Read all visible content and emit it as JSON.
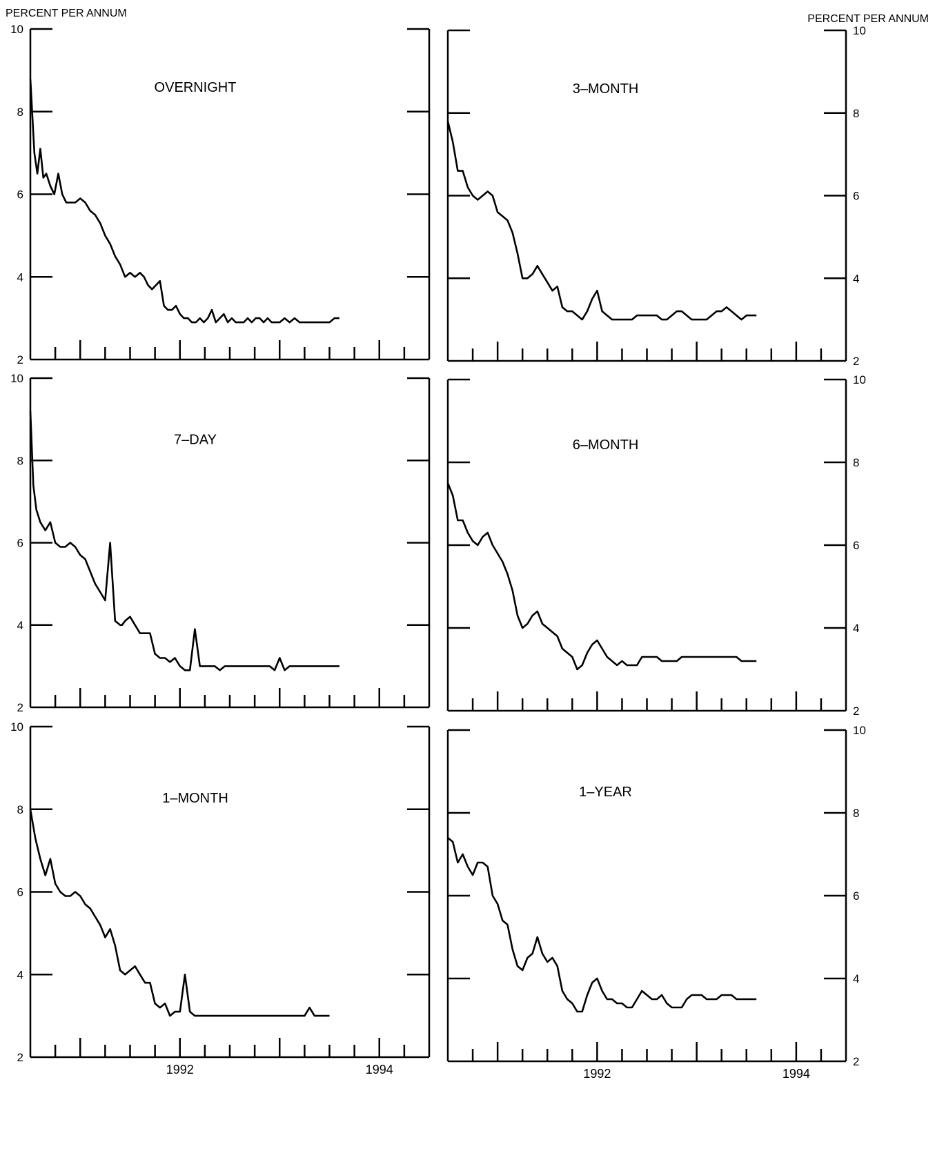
{
  "unit_label": "PERCENT PER ANNUM",
  "colors": {
    "line": "#000000",
    "background": "#ffffff"
  },
  "chart_data": [
    {
      "type": "line",
      "title": "OVERNIGHT",
      "ylabel": "PERCENT PER ANNUM",
      "ylim": [
        2,
        10
      ],
      "yticks": [
        2,
        4,
        6,
        8,
        10
      ],
      "xlim": [
        1990.5,
        1994.5
      ],
      "xtick_labels": [],
      "y_axis_side": "left",
      "grid": false,
      "series": [
        {
          "x": [
            1990.5,
            1990.54,
            1990.57,
            1990.6,
            1990.63,
            1990.66,
            1990.7,
            1990.74,
            1990.78,
            1990.82,
            1990.86,
            1990.9,
            1990.95,
            1991.0,
            1991.05,
            1991.1,
            1991.15,
            1991.2,
            1991.25,
            1991.3,
            1991.35,
            1991.4,
            1991.45,
            1991.5,
            1991.55,
            1991.6,
            1991.64,
            1991.68,
            1991.72,
            1991.76,
            1991.8,
            1991.84,
            1991.88,
            1991.92,
            1991.96,
            1992.0,
            1992.04,
            1992.08,
            1992.12,
            1992.16,
            1992.2,
            1992.24,
            1992.28,
            1992.32,
            1992.36,
            1992.4,
            1992.44,
            1992.48,
            1992.52,
            1992.56,
            1992.6,
            1992.64,
            1992.68,
            1992.72,
            1992.76,
            1992.8,
            1992.84,
            1992.88,
            1992.92,
            1992.96,
            1993.0,
            1993.05,
            1993.1,
            1993.15,
            1993.2,
            1993.25,
            1993.3,
            1993.35,
            1993.4,
            1993.45,
            1993.5,
            1993.55,
            1993.6
          ],
          "y": [
            8.8,
            7.0,
            6.5,
            7.1,
            6.4,
            6.5,
            6.2,
            6.0,
            6.5,
            6.0,
            5.8,
            5.8,
            5.8,
            5.9,
            5.8,
            5.6,
            5.5,
            5.3,
            5.0,
            4.8,
            4.5,
            4.3,
            4.0,
            4.1,
            4.0,
            4.1,
            4.0,
            3.8,
            3.7,
            3.8,
            3.9,
            3.3,
            3.2,
            3.2,
            3.3,
            3.1,
            3.0,
            3.0,
            2.9,
            2.9,
            3.0,
            2.9,
            3.0,
            3.2,
            2.9,
            3.0,
            3.1,
            2.9,
            3.0,
            2.9,
            2.9,
            2.9,
            3.0,
            2.9,
            3.0,
            3.0,
            2.9,
            3.0,
            2.9,
            2.9,
            2.9,
            3.0,
            2.9,
            3.0,
            2.9,
            2.9,
            2.9,
            2.9,
            2.9,
            2.9,
            2.9,
            3.0,
            3.0
          ]
        }
      ]
    },
    {
      "type": "line",
      "title": "7–DAY",
      "ylabel": "",
      "ylim": [
        2,
        10
      ],
      "yticks": [
        2,
        4,
        6,
        8,
        10
      ],
      "xlim": [
        1990.5,
        1994.5
      ],
      "xtick_labels": [],
      "y_axis_side": "left",
      "grid": false,
      "series": [
        {
          "x": [
            1990.5,
            1990.53,
            1990.56,
            1990.6,
            1990.65,
            1990.7,
            1990.75,
            1990.8,
            1990.85,
            1990.9,
            1990.95,
            1991.0,
            1991.05,
            1991.1,
            1991.15,
            1991.2,
            1991.25,
            1991.3,
            1991.35,
            1991.4,
            1991.42,
            1991.45,
            1991.5,
            1991.55,
            1991.6,
            1991.65,
            1991.7,
            1991.75,
            1991.8,
            1991.85,
            1991.9,
            1991.95,
            1992.0,
            1992.05,
            1992.1,
            1992.15,
            1992.2,
            1992.25,
            1992.3,
            1992.35,
            1992.4,
            1992.45,
            1992.5,
            1992.52,
            1992.55,
            1992.6,
            1992.65,
            1992.7,
            1992.75,
            1992.8,
            1992.85,
            1992.9,
            1992.95,
            1993.0,
            1993.05,
            1993.1,
            1993.15,
            1993.2,
            1993.25,
            1993.3,
            1993.35,
            1993.4,
            1993.45,
            1993.5,
            1993.55,
            1993.6
          ],
          "y": [
            9.2,
            7.4,
            6.8,
            6.5,
            6.3,
            6.5,
            6.0,
            5.9,
            5.9,
            6.0,
            5.9,
            5.7,
            5.6,
            5.3,
            5.0,
            4.8,
            4.6,
            6.0,
            4.1,
            4.0,
            4.0,
            4.1,
            4.2,
            4.0,
            3.8,
            3.8,
            3.8,
            3.3,
            3.2,
            3.2,
            3.1,
            3.2,
            3.0,
            2.9,
            2.9,
            3.9,
            3.0,
            3.0,
            3.0,
            3.0,
            2.9,
            3.0,
            3.0,
            3.0,
            3.0,
            3.0,
            3.0,
            3.0,
            3.0,
            3.0,
            3.0,
            3.0,
            2.9,
            3.2,
            2.9,
            3.0,
            3.0,
            3.0,
            3.0,
            3.0,
            3.0,
            3.0,
            3.0,
            3.0,
            3.0,
            3.0
          ]
        }
      ]
    },
    {
      "type": "line",
      "title": "1–MONTH",
      "ylabel": "",
      "ylim": [
        2,
        10
      ],
      "yticks": [
        2,
        4,
        6,
        8,
        10
      ],
      "xlim": [
        1990.5,
        1994.5
      ],
      "xtick_labels": [
        "1992",
        "1994"
      ],
      "y_axis_side": "left",
      "grid": false,
      "series": [
        {
          "x": [
            1990.5,
            1990.55,
            1990.6,
            1990.65,
            1990.7,
            1990.75,
            1990.8,
            1990.85,
            1990.9,
            1990.95,
            1991.0,
            1991.05,
            1991.1,
            1991.15,
            1991.2,
            1991.25,
            1991.3,
            1991.35,
            1991.4,
            1991.45,
            1991.5,
            1991.55,
            1991.6,
            1991.65,
            1991.7,
            1991.75,
            1991.8,
            1991.85,
            1991.9,
            1991.95,
            1992.0,
            1992.05,
            1992.1,
            1992.15,
            1992.2,
            1992.25,
            1992.3,
            1992.35,
            1992.4,
            1992.45,
            1992.5,
            1992.55,
            1992.6,
            1992.65,
            1992.7,
            1992.75,
            1992.8,
            1992.85,
            1992.9,
            1992.95,
            1993.0,
            1993.05,
            1993.1,
            1993.15,
            1993.2,
            1993.25,
            1993.3,
            1993.35,
            1993.4,
            1993.45,
            1993.5
          ],
          "y": [
            8.0,
            7.3,
            6.8,
            6.4,
            6.8,
            6.2,
            6.0,
            5.9,
            5.9,
            6.0,
            5.9,
            5.7,
            5.6,
            5.4,
            5.2,
            4.9,
            5.1,
            4.7,
            4.1,
            4.0,
            4.1,
            4.2,
            4.0,
            3.8,
            3.8,
            3.3,
            3.2,
            3.3,
            3.0,
            3.1,
            3.1,
            4.0,
            3.1,
            3.0,
            3.0,
            3.0,
            3.0,
            3.0,
            3.0,
            3.0,
            3.0,
            3.0,
            3.0,
            3.0,
            3.0,
            3.0,
            3.0,
            3.0,
            3.0,
            3.0,
            3.0,
            3.0,
            3.0,
            3.0,
            3.0,
            3.0,
            3.2,
            3.0,
            3.0,
            3.0,
            3.0
          ]
        }
      ]
    },
    {
      "type": "line",
      "title": "3–MONTH",
      "ylabel": "PERCENT PER ANNUM",
      "ylim": [
        2,
        10
      ],
      "yticks": [
        2,
        4,
        6,
        8,
        10
      ],
      "xlim": [
        1990.5,
        1994.5
      ],
      "xtick_labels": [],
      "y_axis_side": "right",
      "grid": false,
      "series": [
        {
          "x": [
            1990.5,
            1990.55,
            1990.6,
            1990.65,
            1990.7,
            1990.75,
            1990.8,
            1990.85,
            1990.9,
            1990.95,
            1991.0,
            1991.05,
            1991.1,
            1991.15,
            1991.2,
            1991.25,
            1991.3,
            1991.35,
            1991.4,
            1991.45,
            1991.5,
            1991.55,
            1991.6,
            1991.65,
            1991.7,
            1991.75,
            1991.8,
            1991.85,
            1991.9,
            1991.95,
            1992.0,
            1992.05,
            1992.1,
            1992.15,
            1992.2,
            1992.25,
            1992.3,
            1992.35,
            1992.4,
            1992.45,
            1992.5,
            1992.55,
            1992.6,
            1992.65,
            1992.7,
            1992.75,
            1992.8,
            1992.85,
            1992.9,
            1992.95,
            1993.0,
            1993.05,
            1993.1,
            1993.15,
            1993.2,
            1993.25,
            1993.3,
            1993.35,
            1993.4,
            1993.45,
            1993.5,
            1993.55,
            1993.6
          ],
          "y": [
            7.8,
            7.3,
            6.6,
            6.6,
            6.2,
            6.0,
            5.9,
            6.0,
            6.1,
            6.0,
            5.6,
            5.5,
            5.4,
            5.1,
            4.6,
            4.0,
            4.0,
            4.1,
            4.3,
            4.1,
            3.9,
            3.7,
            3.8,
            3.3,
            3.2,
            3.2,
            3.1,
            3.0,
            3.2,
            3.5,
            3.7,
            3.2,
            3.1,
            3.0,
            3.0,
            3.0,
            3.0,
            3.0,
            3.1,
            3.1,
            3.1,
            3.1,
            3.1,
            3.0,
            3.0,
            3.1,
            3.2,
            3.2,
            3.1,
            3.0,
            3.0,
            3.0,
            3.0,
            3.1,
            3.2,
            3.2,
            3.3,
            3.2,
            3.1,
            3.0,
            3.1,
            3.1,
            3.1
          ]
        }
      ]
    },
    {
      "type": "line",
      "title": "6–MONTH",
      "ylabel": "",
      "ylim": [
        2,
        10
      ],
      "yticks": [
        2,
        4,
        6,
        8,
        10
      ],
      "xlim": [
        1990.5,
        1994.5
      ],
      "xtick_labels": [],
      "y_axis_side": "right",
      "grid": false,
      "series": [
        {
          "x": [
            1990.5,
            1990.55,
            1990.6,
            1990.65,
            1990.7,
            1990.75,
            1990.8,
            1990.85,
            1990.9,
            1990.95,
            1991.0,
            1991.05,
            1991.1,
            1991.15,
            1991.2,
            1991.25,
            1991.3,
            1991.35,
            1991.4,
            1991.45,
            1991.5,
            1991.55,
            1991.6,
            1991.65,
            1991.7,
            1991.75,
            1991.8,
            1991.85,
            1991.9,
            1991.95,
            1992.0,
            1992.05,
            1992.1,
            1992.15,
            1992.2,
            1992.25,
            1992.3,
            1992.35,
            1992.4,
            1992.45,
            1992.5,
            1992.55,
            1992.6,
            1992.65,
            1992.7,
            1992.75,
            1992.8,
            1992.85,
            1992.9,
            1992.95,
            1993.0,
            1993.05,
            1993.1,
            1993.15,
            1993.2,
            1993.25,
            1993.3,
            1993.35,
            1993.4,
            1993.45,
            1993.5,
            1993.55,
            1993.6
          ],
          "y": [
            7.5,
            7.2,
            6.6,
            6.6,
            6.3,
            6.1,
            6.0,
            6.2,
            6.3,
            6.0,
            5.8,
            5.6,
            5.3,
            4.9,
            4.3,
            4.0,
            4.1,
            4.3,
            4.4,
            4.1,
            4.0,
            3.9,
            3.8,
            3.5,
            3.4,
            3.3,
            3.0,
            3.1,
            3.4,
            3.6,
            3.7,
            3.5,
            3.3,
            3.2,
            3.1,
            3.2,
            3.1,
            3.1,
            3.1,
            3.3,
            3.3,
            3.3,
            3.3,
            3.2,
            3.2,
            3.2,
            3.2,
            3.3,
            3.3,
            3.3,
            3.3,
            3.3,
            3.3,
            3.3,
            3.3,
            3.3,
            3.3,
            3.3,
            3.3,
            3.2,
            3.2,
            3.2,
            3.2
          ]
        }
      ]
    },
    {
      "type": "line",
      "title": "1–YEAR",
      "ylabel": "",
      "ylim": [
        2,
        10
      ],
      "yticks": [
        2,
        4,
        6,
        8,
        10
      ],
      "xlim": [
        1990.5,
        1994.5
      ],
      "xtick_labels": [
        "1992",
        "1994"
      ],
      "y_axis_side": "right",
      "grid": false,
      "series": [
        {
          "x": [
            1990.5,
            1990.55,
            1990.6,
            1990.65,
            1990.7,
            1990.75,
            1990.8,
            1990.85,
            1990.9,
            1990.95,
            1991.0,
            1991.05,
            1991.1,
            1991.15,
            1991.2,
            1991.25,
            1991.3,
            1991.35,
            1991.4,
            1991.45,
            1991.5,
            1991.55,
            1991.6,
            1991.65,
            1991.7,
            1991.75,
            1991.8,
            1991.85,
            1991.9,
            1991.95,
            1992.0,
            1992.05,
            1992.1,
            1992.15,
            1992.2,
            1992.25,
            1992.3,
            1992.35,
            1992.4,
            1992.45,
            1992.5,
            1992.55,
            1992.6,
            1992.65,
            1992.7,
            1992.75,
            1992.8,
            1992.85,
            1992.9,
            1992.95,
            1993.0,
            1993.05,
            1993.1,
            1993.15,
            1993.2,
            1993.25,
            1993.3,
            1993.35,
            1993.4,
            1993.45,
            1993.5,
            1993.55,
            1993.6
          ],
          "y": [
            7.4,
            7.3,
            6.8,
            7.0,
            6.7,
            6.5,
            6.8,
            6.8,
            6.7,
            6.0,
            5.8,
            5.4,
            5.3,
            4.7,
            4.3,
            4.2,
            4.5,
            4.6,
            5.0,
            4.6,
            4.4,
            4.5,
            4.3,
            3.7,
            3.5,
            3.4,
            3.2,
            3.2,
            3.6,
            3.9,
            4.0,
            3.7,
            3.5,
            3.5,
            3.4,
            3.4,
            3.3,
            3.3,
            3.5,
            3.7,
            3.6,
            3.5,
            3.5,
            3.6,
            3.4,
            3.3,
            3.3,
            3.3,
            3.5,
            3.6,
            3.6,
            3.6,
            3.5,
            3.5,
            3.5,
            3.6,
            3.6,
            3.6,
            3.5,
            3.5,
            3.5,
            3.5,
            3.5
          ]
        }
      ]
    }
  ]
}
